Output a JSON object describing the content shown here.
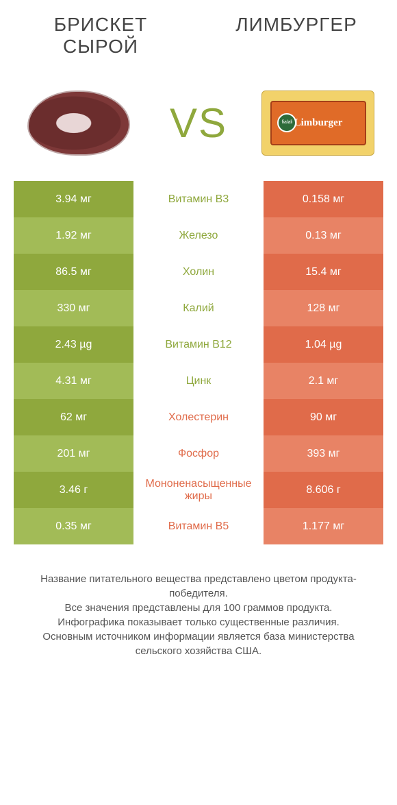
{
  "colors": {
    "green_dark": "#8fa83d",
    "green_light": "#a2bb57",
    "coral_dark": "#e06b4a",
    "coral_light": "#e88365",
    "text": "#333333",
    "background": "#ffffff"
  },
  "header": {
    "left_title": "БРИСКЕТ СЫРОЙ",
    "right_title": "ЛИМБУРГЕР",
    "vs": "VS",
    "left_image": "raw-brisket-meat",
    "right_image": "limburger-cheese-package",
    "cheese_brand": "Limburger",
    "cheese_logo": "fialali"
  },
  "rows": [
    {
      "nutrient": "Витамин B3",
      "left": "3.94 мг",
      "right": "0.158 мг",
      "winner": "left"
    },
    {
      "nutrient": "Железо",
      "left": "1.92 мг",
      "right": "0.13 мг",
      "winner": "left"
    },
    {
      "nutrient": "Холин",
      "left": "86.5 мг",
      "right": "15.4 мг",
      "winner": "left"
    },
    {
      "nutrient": "Калий",
      "left": "330 мг",
      "right": "128 мг",
      "winner": "left"
    },
    {
      "nutrient": "Витамин B12",
      "left": "2.43 µg",
      "right": "1.04 µg",
      "winner": "left"
    },
    {
      "nutrient": "Цинк",
      "left": "4.31 мг",
      "right": "2.1 мг",
      "winner": "left"
    },
    {
      "nutrient": "Холестерин",
      "left": "62 мг",
      "right": "90 мг",
      "winner": "right"
    },
    {
      "nutrient": "Фосфор",
      "left": "201 мг",
      "right": "393 мг",
      "winner": "right"
    },
    {
      "nutrient": "Мононенасыщенные жиры",
      "left": "3.46 г",
      "right": "8.606 г",
      "winner": "right"
    },
    {
      "nutrient": "Витамин B5",
      "left": "0.35 мг",
      "right": "1.177 мг",
      "winner": "right"
    }
  ],
  "footnote": {
    "line1": "Название питательного вещества представлено цветом продукта-победителя.",
    "line2": "Все значения представлены для 100 граммов продукта.",
    "line3": "Инфографика показывает только существенные различия.",
    "line4": "Основным источником информации является база министерства сельского хозяйства США."
  }
}
